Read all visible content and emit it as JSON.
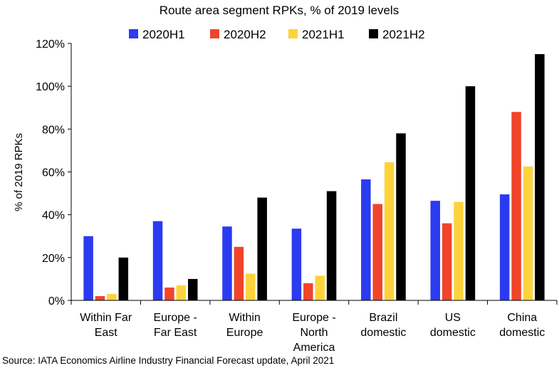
{
  "chart_data": {
    "type": "bar",
    "title": "Route area segment RPKs, % of 2019 levels",
    "ylabel": "% of 2019 RPKs",
    "xlabel": "",
    "ylim": [
      0,
      120
    ],
    "yticks": [
      0,
      20,
      40,
      60,
      80,
      100,
      120
    ],
    "ytick_labels": [
      "0%",
      "20%",
      "40%",
      "60%",
      "80%",
      "100%",
      "120%"
    ],
    "grid": false,
    "legend_position": "top",
    "categories": [
      [
        "Within Far",
        "East"
      ],
      [
        "Europe -",
        "Far East"
      ],
      [
        "Within",
        "Europe"
      ],
      [
        "Europe -",
        "North",
        "America"
      ],
      [
        "Brazil",
        "domestic"
      ],
      [
        "US",
        "domestic"
      ],
      [
        "China",
        "domestic"
      ]
    ],
    "series": [
      {
        "name": "2020H1",
        "color": "#2a3bf0",
        "values": [
          30,
          37,
          34.5,
          33.5,
          56.5,
          46.5,
          49.5
        ]
      },
      {
        "name": "2020H2",
        "color": "#f0452a",
        "values": [
          2,
          6,
          25,
          8,
          45,
          36,
          88
        ]
      },
      {
        "name": "2021H1",
        "color": "#fcd33d",
        "values": [
          3,
          7,
          12.5,
          11.5,
          64.5,
          46,
          62.5
        ]
      },
      {
        "name": "2021H2",
        "color": "#000000",
        "values": [
          20,
          10,
          48,
          51,
          78,
          100,
          115
        ]
      }
    ]
  },
  "source": "Source: IATA Economics Airline Industry Financial Forecast update, April 2021"
}
